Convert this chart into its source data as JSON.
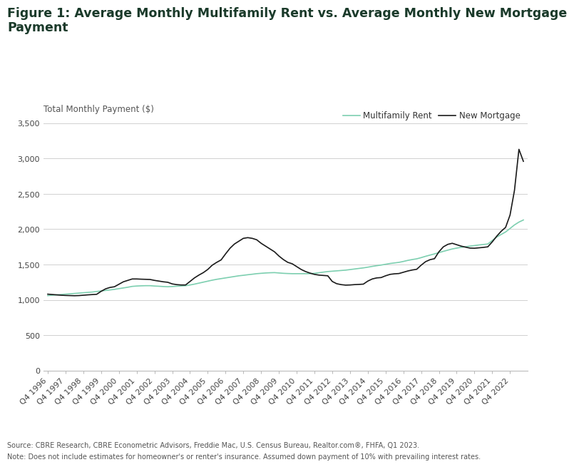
{
  "title_line1": "Figure 1: Average Monthly Multifamily Rent vs. Average Monthly New Mortgage",
  "title_line2": "Payment",
  "ylabel": "Total Monthly Payment ($)",
  "legend_rent": "Multifamily Rent",
  "legend_mortgage": "New Mortgage",
  "source_text": "Source: CBRE Research, CBRE Econometric Advisors, Freddie Mac, U.S. Census Bureau, Realtor.com®, FHFA, Q1 2023.",
  "note_text": "Note: Does not include estimates for homeowner's or renter's insurance. Assumed down payment of 10% with prevailing interest rates.",
  "x_tick_labels": [
    "Q4 1996",
    "Q4 1997",
    "Q4 1998",
    "Q4 1999",
    "Q4 2000",
    "Q4 2001",
    "Q4 2002",
    "Q4 2003",
    "Q4 2004",
    "Q4 2005",
    "Q4 2006",
    "Q4 2007",
    "Q4 2008",
    "Q4 2009",
    "Q4 2010",
    "Q4 2011",
    "Q4 2012",
    "Q4 2013",
    "Q4 2014",
    "Q4 2015",
    "Q4 2016",
    "Q4 2017",
    "Q4 2018",
    "Q4 2019",
    "Q4 2020",
    "Q4 2021",
    "Q4 2022"
  ],
  "multifamily_rent": [
    1060,
    1065,
    1070,
    1075,
    1080,
    1085,
    1090,
    1095,
    1100,
    1105,
    1110,
    1118,
    1125,
    1133,
    1140,
    1148,
    1158,
    1168,
    1178,
    1190,
    1195,
    1198,
    1200,
    1200,
    1195,
    1192,
    1188,
    1185,
    1188,
    1192,
    1196,
    1200,
    1210,
    1222,
    1236,
    1250,
    1264,
    1278,
    1290,
    1300,
    1310,
    1320,
    1330,
    1340,
    1347,
    1355,
    1362,
    1370,
    1375,
    1380,
    1383,
    1385,
    1380,
    1375,
    1372,
    1370,
    1370,
    1370,
    1370,
    1370,
    1375,
    1383,
    1392,
    1400,
    1405,
    1410,
    1415,
    1420,
    1428,
    1436,
    1444,
    1452,
    1462,
    1473,
    1483,
    1492,
    1503,
    1514,
    1522,
    1530,
    1543,
    1558,
    1570,
    1580,
    1597,
    1616,
    1633,
    1650,
    1668,
    1686,
    1703,
    1720,
    1732,
    1743,
    1752,
    1760,
    1768,
    1776,
    1783,
    1790,
    1840,
    1888,
    1925,
    1960,
    2010,
    2060,
    2100,
    2130
  ],
  "new_mortgage": [
    1080,
    1075,
    1070,
    1065,
    1062,
    1060,
    1058,
    1060,
    1065,
    1070,
    1074,
    1078,
    1120,
    1155,
    1175,
    1185,
    1220,
    1255,
    1275,
    1295,
    1295,
    1292,
    1290,
    1288,
    1275,
    1265,
    1255,
    1248,
    1225,
    1215,
    1210,
    1210,
    1260,
    1310,
    1350,
    1385,
    1430,
    1490,
    1530,
    1565,
    1650,
    1730,
    1790,
    1830,
    1870,
    1880,
    1870,
    1850,
    1800,
    1760,
    1720,
    1680,
    1620,
    1570,
    1530,
    1510,
    1470,
    1430,
    1400,
    1378,
    1360,
    1350,
    1345,
    1340,
    1260,
    1228,
    1215,
    1208,
    1210,
    1215,
    1218,
    1222,
    1265,
    1295,
    1310,
    1315,
    1340,
    1360,
    1368,
    1372,
    1390,
    1408,
    1422,
    1432,
    1490,
    1540,
    1568,
    1582,
    1680,
    1750,
    1785,
    1800,
    1780,
    1760,
    1745,
    1732,
    1730,
    1736,
    1742,
    1750,
    1820,
    1900,
    1970,
    2025,
    2200,
    2550,
    3130,
    2960
  ],
  "n_quarters": 108,
  "n_years": 27,
  "ylim": [
    0,
    3500
  ],
  "yticks": [
    0,
    500,
    1000,
    1500,
    2000,
    2500,
    3000,
    3500
  ],
  "rent_color": "#7dcfb0",
  "mortgage_color": "#1a1a1a",
  "bg_color": "#ffffff",
  "grid_color": "#d0d0d0",
  "title_color": "#1a3a2a",
  "title_fontsize": 12.5,
  "axis_label_fontsize": 8.5,
  "tick_fontsize": 8,
  "legend_fontsize": 8.5,
  "source_fontsize": 7
}
